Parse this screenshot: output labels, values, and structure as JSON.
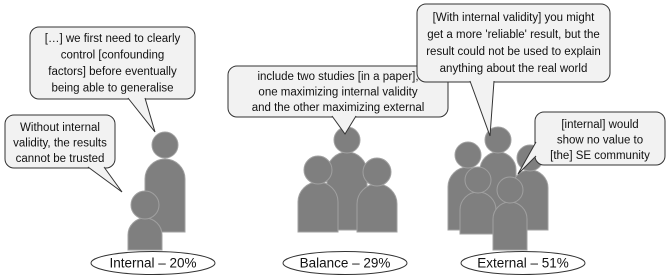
{
  "groups": [
    {
      "label": "Internal – 20%",
      "quotes": [
        {
          "lines": [
            "[…] we first need to clearly",
            "control [confounding",
            "factors] before eventually",
            "being able to generalise"
          ]
        },
        {
          "lines": [
            "Without internal",
            "validity, the results",
            "cannot be trusted"
          ]
        }
      ]
    },
    {
      "label": "Balance – 29%",
      "quotes": [
        {
          "lines": [
            "include two studies [in a paper],",
            "one maximizing internal validity",
            "and the other maximizing external"
          ]
        }
      ]
    },
    {
      "label": "External – 51%",
      "quotes": [
        {
          "lines": [
            "[With internal validity] you might",
            "get a more 'reliable' result, but the",
            "result could not be used to explain",
            "anything about the real world"
          ]
        },
        {
          "lines": [
            "[internal] would",
            "show no value to",
            "[the] SE community"
          ]
        }
      ]
    }
  ]
}
